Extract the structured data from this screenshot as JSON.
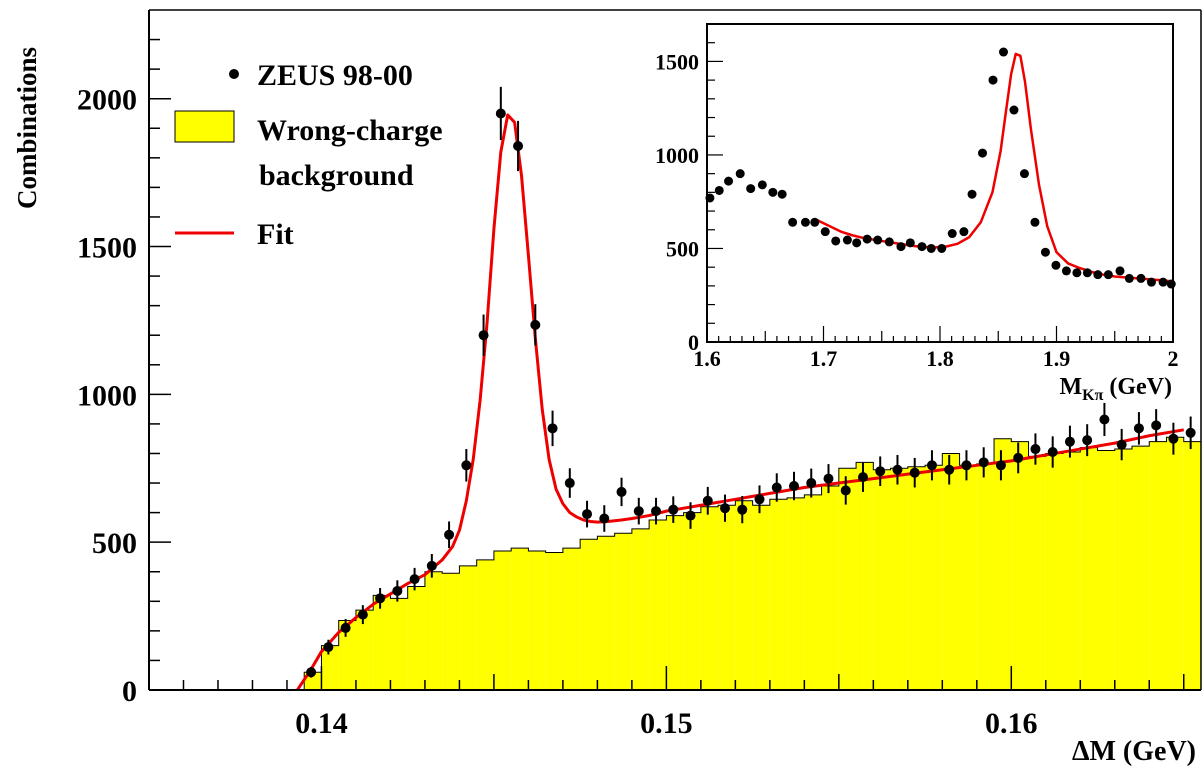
{
  "chart_data": [
    {
      "type": "scatter",
      "ylabel": "Combinations",
      "xlabel": "ΔM (GeV)",
      "xlim": [
        0.135,
        0.1655
      ],
      "ylim": [
        0,
        2300
      ],
      "xticks": [
        0.14,
        0.15,
        0.16
      ],
      "xtick_labels": [
        "0.14",
        "0.15",
        "0.16"
      ],
      "yticks": [
        0,
        500,
        1000,
        1500,
        2000
      ],
      "ytick_labels": [
        "0",
        "500",
        "1000",
        "1500",
        "2000"
      ],
      "legend": {
        "position": "top-left",
        "entries": [
          {
            "label": "ZEUS 98-00",
            "marker": "dot"
          },
          {
            "label": "Wrong-charge",
            "label2": "background",
            "marker": "box",
            "color": "#ffff00"
          },
          {
            "label": "Fit",
            "marker": "line",
            "color": "#ee0000"
          }
        ]
      },
      "series": [
        {
          "name": "ZEUS 98-00",
          "x": [
            0.1397,
            0.1402,
            0.1407,
            0.1412,
            0.1417,
            0.1422,
            0.1427,
            0.1432,
            0.1437,
            0.1442,
            0.1447,
            0.1452,
            0.1457,
            0.1462,
            0.1467,
            0.1472,
            0.1477,
            0.1482,
            0.1487,
            0.1492,
            0.1497,
            0.1502,
            0.1507,
            0.1512,
            0.1517,
            0.1522,
            0.1527,
            0.1532,
            0.1537,
            0.1542,
            0.1547,
            0.1552,
            0.1557,
            0.1562,
            0.1567,
            0.1572,
            0.1577,
            0.1582,
            0.1587,
            0.1592,
            0.1597,
            0.1602,
            0.1607,
            0.1612,
            0.1617,
            0.1622,
            0.1627,
            0.1632,
            0.1637,
            0.1642,
            0.1647,
            0.1652
          ],
          "y": [
            60,
            145,
            210,
            255,
            310,
            335,
            375,
            420,
            525,
            760,
            1200,
            1950,
            1840,
            1235,
            885,
            700,
            595,
            580,
            670,
            605,
            605,
            610,
            590,
            640,
            615,
            610,
            645,
            685,
            690,
            700,
            715,
            675,
            720,
            740,
            745,
            735,
            760,
            745,
            760,
            770,
            760,
            785,
            815,
            805,
            840,
            845,
            915,
            830,
            885,
            895,
            850,
            870
          ],
          "y_err": [
            18,
            25,
            30,
            32,
            35,
            36,
            38,
            40,
            45,
            55,
            70,
            90,
            85,
            70,
            60,
            50,
            45,
            45,
            48,
            45,
            45,
            45,
            45,
            47,
            46,
            46,
            47,
            48,
            48,
            49,
            49,
            48,
            50,
            50,
            50,
            50,
            51,
            50,
            51,
            51,
            51,
            52,
            53,
            53,
            54,
            54,
            56,
            53,
            55,
            55,
            54,
            55
          ]
        },
        {
          "name": "Wrong-charge background",
          "type": "histogram",
          "bin_edges": [
            0.1395,
            0.14,
            0.1405,
            0.141,
            0.1415,
            0.142,
            0.1425,
            0.143,
            0.1435,
            0.144,
            0.1445,
            0.145,
            0.1455,
            0.146,
            0.1465,
            0.147,
            0.1475,
            0.148,
            0.1485,
            0.149,
            0.1495,
            0.15,
            0.1505,
            0.151,
            0.1515,
            0.152,
            0.1525,
            0.153,
            0.1535,
            0.154,
            0.1545,
            0.155,
            0.1555,
            0.156,
            0.1565,
            0.157,
            0.1575,
            0.158,
            0.1585,
            0.159,
            0.1595,
            0.16,
            0.1605,
            0.161,
            0.1615,
            0.162,
            0.1625,
            0.163,
            0.1635,
            0.164,
            0.1645,
            0.165,
            0.1655
          ],
          "values": [
            60,
            150,
            235,
            270,
            320,
            310,
            350,
            400,
            395,
            420,
            440,
            470,
            480,
            470,
            465,
            480,
            510,
            520,
            530,
            545,
            575,
            590,
            600,
            620,
            625,
            640,
            625,
            645,
            650,
            660,
            690,
            750,
            770,
            745,
            750,
            755,
            760,
            800,
            760,
            765,
            850,
            840,
            790,
            800,
            805,
            820,
            810,
            815,
            825,
            840,
            855,
            840
          ],
          "color": "#ffff00"
        },
        {
          "name": "Fit",
          "type": "line",
          "x": [
            0.1393,
            0.1397,
            0.14,
            0.1405,
            0.141,
            0.1415,
            0.142,
            0.1425,
            0.143,
            0.1435,
            0.1438,
            0.144,
            0.1442,
            0.1444,
            0.1446,
            0.1448,
            0.145,
            0.1452,
            0.1454,
            0.1456,
            0.1458,
            0.146,
            0.1462,
            0.1464,
            0.1466,
            0.1468,
            0.147,
            0.1472,
            0.1474,
            0.1476,
            0.1478,
            0.148,
            0.1483,
            0.1487,
            0.149,
            0.1495,
            0.15,
            0.1505,
            0.151,
            0.152,
            0.153,
            0.154,
            0.155,
            0.156,
            0.157,
            0.158,
            0.159,
            0.16,
            0.161,
            0.162,
            0.163,
            0.164,
            0.165
          ],
          "y": [
            0,
            70,
            130,
            195,
            245,
            290,
            325,
            360,
            390,
            440,
            485,
            540,
            640,
            780,
            980,
            1240,
            1560,
            1820,
            1945,
            1920,
            1740,
            1470,
            1190,
            950,
            780,
            680,
            630,
            600,
            585,
            575,
            570,
            568,
            570,
            575,
            580,
            590,
            605,
            615,
            625,
            645,
            665,
            685,
            700,
            715,
            730,
            745,
            760,
            775,
            795,
            815,
            835,
            860,
            880
          ],
          "color": "#ee0000"
        }
      ]
    },
    {
      "type": "scatter",
      "inset": true,
      "xlabel": "M",
      "xlabel_sub": "Kπ",
      "xlabel_unit": "(GeV)",
      "xlim": [
        1.6,
        2.0
      ],
      "ylim": [
        0,
        1700
      ],
      "xticks": [
        1.6,
        1.7,
        1.8,
        1.9,
        2.0
      ],
      "xtick_labels": [
        "1.6",
        "1.7",
        "1.8",
        "1.9",
        "2"
      ],
      "yticks": [
        0,
        500,
        1000,
        1500
      ],
      "ytick_labels": [
        "0",
        "500",
        "1000",
        "1500"
      ],
      "series": [
        {
          "name": "data",
          "x": [
            1.6025,
            1.6105,
            1.6185,
            1.6285,
            1.6375,
            1.6475,
            1.6565,
            1.6645,
            1.6735,
            1.6845,
            1.6925,
            1.7015,
            1.7105,
            1.7205,
            1.7285,
            1.7375,
            1.7465,
            1.7565,
            1.7665,
            1.7745,
            1.7845,
            1.7925,
            1.8015,
            1.8105,
            1.8205,
            1.8275,
            1.8365,
            1.8455,
            1.8545,
            1.8635,
            1.8725,
            1.8815,
            1.8905,
            1.8995,
            1.9085,
            1.9175,
            1.9265,
            1.9355,
            1.9445,
            1.9545,
            1.9625,
            1.9725,
            1.9815,
            1.9915,
            1.9985
          ],
          "y": [
            770,
            810,
            860,
            900,
            820,
            840,
            800,
            790,
            640,
            640,
            640,
            590,
            540,
            545,
            530,
            550,
            545,
            535,
            510,
            530,
            510,
            500,
            500,
            580,
            590,
            790,
            1010,
            1400,
            1550,
            1240,
            900,
            640,
            480,
            410,
            380,
            370,
            370,
            360,
            360,
            380,
            340,
            340,
            320,
            320,
            310
          ],
          "color": "#000000"
        },
        {
          "name": "fit",
          "type": "line",
          "x": [
            1.695,
            1.705,
            1.715,
            1.725,
            1.735,
            1.745,
            1.755,
            1.765,
            1.775,
            1.785,
            1.795,
            1.805,
            1.815,
            1.825,
            1.835,
            1.845,
            1.852,
            1.857,
            1.861,
            1.865,
            1.869,
            1.873,
            1.878,
            1.885,
            1.892,
            1.9,
            1.91,
            1.92,
            1.93,
            1.94,
            1.95,
            1.96,
            1.97,
            1.98,
            1.99,
            1.998
          ],
          "y": [
            650,
            620,
            590,
            570,
            555,
            545,
            535,
            525,
            515,
            508,
            505,
            510,
            525,
            560,
            640,
            800,
            1020,
            1250,
            1430,
            1540,
            1530,
            1390,
            1140,
            840,
            620,
            480,
            420,
            395,
            375,
            360,
            350,
            345,
            340,
            335,
            330,
            325
          ],
          "color": "#ee0000"
        }
      ]
    }
  ]
}
